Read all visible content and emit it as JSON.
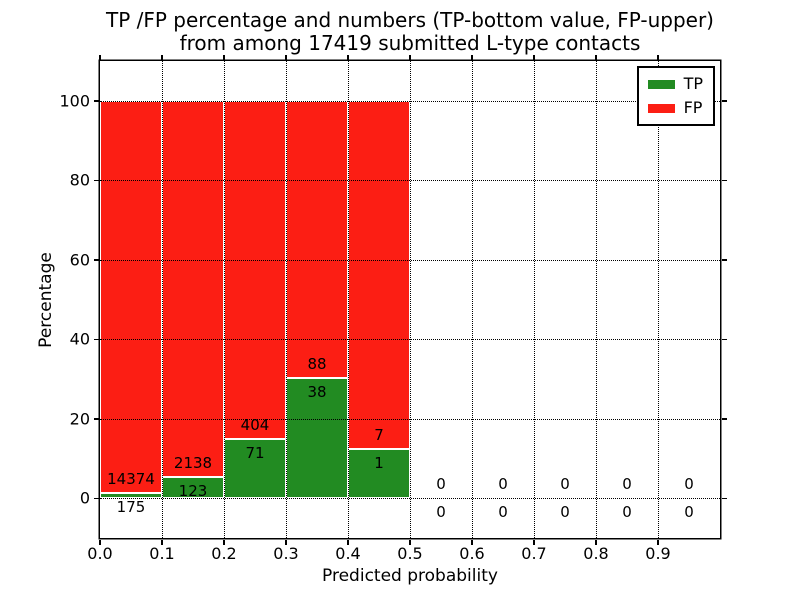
{
  "chart_data": {
    "type": "bar",
    "subtype": "stacked-percentage-histogram",
    "title_line1": "TP /FP percentage and numbers (TP-bottom value, FP-upper)",
    "title_line2": "from among 17419 submitted L-type contacts",
    "total_submitted": 17419,
    "xlabel": "Predicted probability",
    "ylabel": "Percentage",
    "xlim": [
      0.0,
      1.0
    ],
    "ylim": [
      -10,
      110
    ],
    "grid": true,
    "x_tick_labels": [
      "0.0",
      "0.1",
      "0.2",
      "0.3",
      "0.4",
      "0.5",
      "0.6",
      "0.7",
      "0.8",
      "0.9"
    ],
    "y_tick_labels": [
      "0",
      "20",
      "40",
      "60",
      "80",
      "100"
    ],
    "y_tick_values": [
      0,
      20,
      40,
      60,
      80,
      100
    ],
    "legend": {
      "position": "upper-right",
      "entries": [
        {
          "label": "TP",
          "color": "#228b22"
        },
        {
          "label": "FP",
          "color": "#fc1e14"
        }
      ]
    },
    "bins": [
      {
        "range": [
          0.0,
          0.1
        ],
        "tp": 175,
        "fp": 14374
      },
      {
        "range": [
          0.1,
          0.2
        ],
        "tp": 123,
        "fp": 2138
      },
      {
        "range": [
          0.2,
          0.3
        ],
        "tp": 71,
        "fp": 404
      },
      {
        "range": [
          0.3,
          0.4
        ],
        "tp": 38,
        "fp": 88
      },
      {
        "range": [
          0.4,
          0.5
        ],
        "tp": 1,
        "fp": 7
      },
      {
        "range": [
          0.5,
          0.6
        ],
        "tp": 0,
        "fp": 0
      },
      {
        "range": [
          0.6,
          0.7
        ],
        "tp": 0,
        "fp": 0
      },
      {
        "range": [
          0.7,
          0.8
        ],
        "tp": 0,
        "fp": 0
      },
      {
        "range": [
          0.8,
          0.9
        ],
        "tp": 0,
        "fp": 0
      },
      {
        "range": [
          0.9,
          1.0
        ],
        "tp": 0,
        "fp": 0
      }
    ],
    "note": "Bars stack TP (bottom, green) and FP (top) to 100% for non-empty bins; labels show raw counts (FP above green top, TP below it)."
  }
}
